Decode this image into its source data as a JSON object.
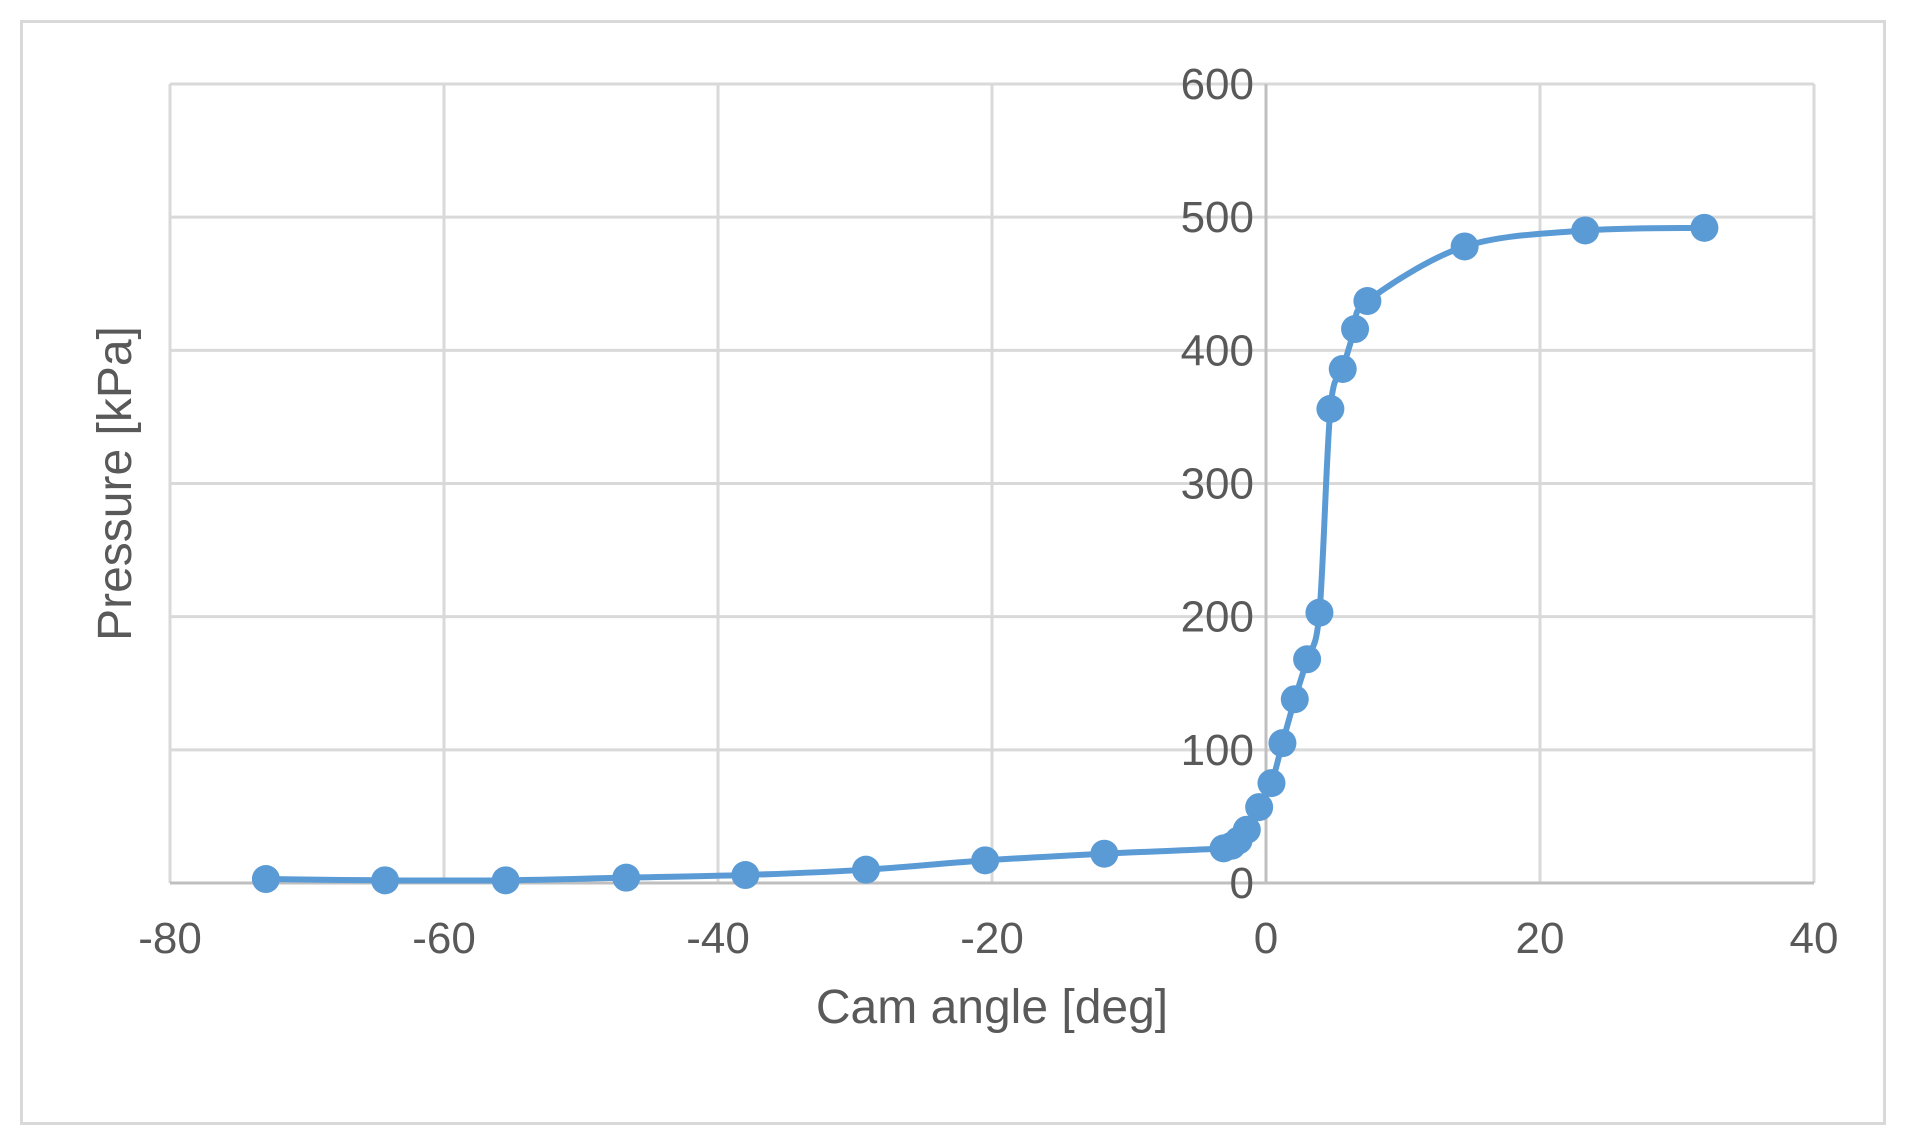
{
  "chart_data": {
    "type": "scatter",
    "title": "",
    "xlabel": "Cam angle [deg]",
    "ylabel": "Pressure [kPa]",
    "xlim": [
      -80,
      40
    ],
    "ylim": [
      0,
      600
    ],
    "x_ticks": [
      -80,
      -60,
      -40,
      -20,
      0,
      20,
      40
    ],
    "x_tick_labels": [
      "-80",
      "-60",
      "-40",
      "-20",
      "0",
      "20",
      "40"
    ],
    "y_ticks": [
      0,
      100,
      200,
      300,
      400,
      500,
      600
    ],
    "y_tick_labels": [
      "0",
      "100",
      "200",
      "300",
      "400",
      "500",
      "600"
    ],
    "grid": true,
    "legend": "none",
    "y_axis_crosses_at_x": 0,
    "smoothed_line": true,
    "marker": "circle",
    "series": [
      {
        "color": "#5b9bd5",
        "x": [
          -73,
          -64.3,
          -55.5,
          -46.7,
          -38,
          -29.2,
          -20.5,
          -11.8,
          -3.1,
          -2.5,
          -2,
          -1.4,
          -0.5,
          0.4,
          1.2,
          2.1,
          3,
          3.9,
          4.7,
          5.6,
          6.5,
          7.4,
          14.5,
          23.3,
          32
        ],
        "y": [
          3,
          2,
          2,
          4,
          6,
          10,
          17,
          22,
          26,
          28,
          32,
          40,
          57,
          75,
          105,
          138,
          168,
          203,
          356,
          386,
          416,
          437,
          478,
          490,
          492
        ]
      }
    ]
  }
}
